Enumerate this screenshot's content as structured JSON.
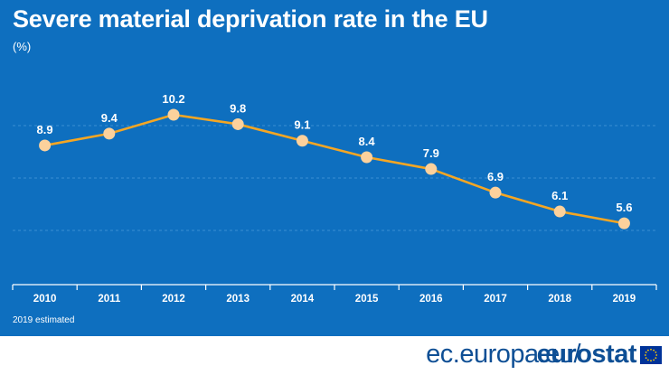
{
  "header": {
    "title": "Severe material deprivation rate in the EU",
    "unit": "(%)"
  },
  "footnote": "2019 estimated",
  "footer": {
    "url": "ec.europa.eu/",
    "brand": "eurostat"
  },
  "colors": {
    "background": "#0e6fbf",
    "line": "#f5a623",
    "marker": "#fcd19c",
    "gridline": "#3a8fd3",
    "text": "#ffffff",
    "brand": "#0e4f95",
    "flag_blue": "#003399",
    "flag_star": "#ffcc00"
  },
  "chart_data": {
    "type": "line",
    "title": "Severe material deprivation rate in the EU",
    "xlabel": "",
    "ylabel": "(%)",
    "categories": [
      "2010",
      "2011",
      "2012",
      "2013",
      "2014",
      "2015",
      "2016",
      "2017",
      "2018",
      "2019"
    ],
    "series": [
      {
        "name": "Severe material deprivation rate",
        "values": [
          8.9,
          9.4,
          10.2,
          9.8,
          9.1,
          8.4,
          7.9,
          6.9,
          6.1,
          5.6
        ],
        "labels": [
          "8.9",
          "9.4",
          "10.2",
          "9.8",
          "9.1",
          "8.4",
          "7.9",
          "6.9",
          "6.1",
          "5.6"
        ]
      }
    ],
    "ylim": [
      3,
      12
    ],
    "grid": true,
    "data_labels": true
  }
}
